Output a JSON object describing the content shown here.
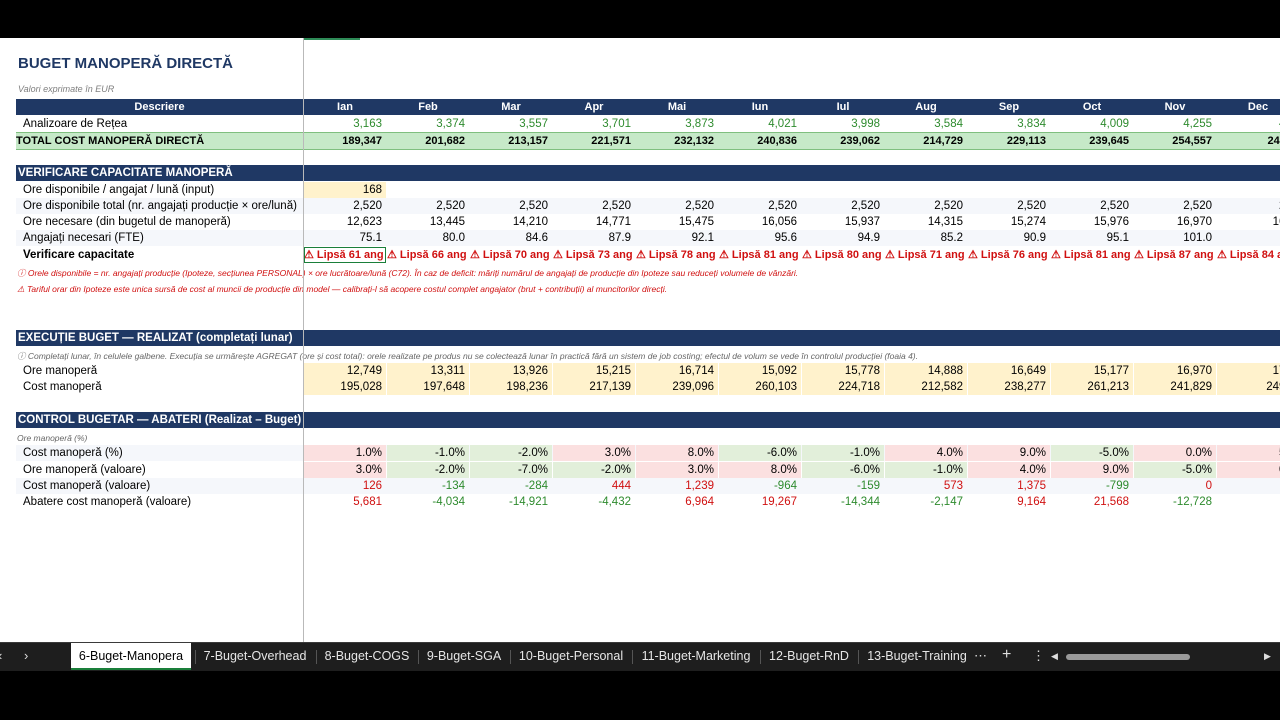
{
  "title": "BUGET MANOPERĂ DIRECTĂ",
  "subtitle": "Valori exprimate în EUR",
  "header": {
    "label": "Descriere",
    "months": [
      "Ian",
      "Feb",
      "Mar",
      "Apr",
      "Mai",
      "Iun",
      "Iul",
      "Aug",
      "Sep",
      "Oct",
      "Nov",
      "Dec"
    ]
  },
  "budget": {
    "analyzers": {
      "label": "Analizoare de Rețea",
      "values": [
        "3,163",
        "3,374",
        "3,557",
        "3,701",
        "3,873",
        "4,021",
        "3,998",
        "3,584",
        "3,834",
        "4,009",
        "4,255",
        "4,1"
      ]
    },
    "total": {
      "label": "TOTAL COST MANOPERĂ DIRECTĂ",
      "values": [
        "189,347",
        "201,682",
        "213,157",
        "221,571",
        "232,132",
        "240,836",
        "239,062",
        "214,729",
        "229,113",
        "239,645",
        "254,557",
        "249,0"
      ]
    }
  },
  "capacity": {
    "title": "VERIFICARE CAPACITATE MANOPERĂ",
    "hours_per_employee": {
      "label": "Ore disponibile / angajat / lună (input)",
      "value": "168"
    },
    "hours_total": {
      "label": "Ore disponibile total (nr. angajați producție × ore/lună)",
      "values": [
        "2,520",
        "2,520",
        "2,520",
        "2,520",
        "2,520",
        "2,520",
        "2,520",
        "2,520",
        "2,520",
        "2,520",
        "2,520",
        "2,5"
      ]
    },
    "hours_needed": {
      "label": "Ore necesare (din bugetul de manoperă)",
      "values": [
        "12,623",
        "13,445",
        "14,210",
        "14,771",
        "15,475",
        "16,056",
        "15,937",
        "14,315",
        "15,274",
        "15,976",
        "16,970",
        "16,6"
      ]
    },
    "fte": {
      "label": "Angajați necesari (FTE)",
      "values": [
        "75.1",
        "80.0",
        "84.6",
        "87.9",
        "92.1",
        "95.6",
        "94.9",
        "85.2",
        "90.9",
        "95.1",
        "101.0",
        "98"
      ]
    },
    "check": {
      "label": "Verificare capacitate",
      "values": [
        "⚠ Lipsă 61 ang",
        "⚠ Lipsă 66 ang",
        "⚠ Lipsă 70 ang",
        "⚠ Lipsă 73 ang",
        "⚠ Lipsă 78 ang",
        "⚠ Lipsă 81 ang",
        "⚠ Lipsă 80 ang",
        "⚠ Lipsă 71 ang",
        "⚠ Lipsă 76 ang",
        "⚠ Lipsă 81 ang",
        "⚠ Lipsă 87 ang",
        "⚠ Lipsă 84 a"
      ]
    },
    "note1": "ⓘ Orele disponibile = nr. angajați producție (Ipoteze, secțiunea PERSONAL) × ore lucrătoare/lună (C72). În caz de deficit: măriți numărul de angajați de producție din Ipoteze sau reduceți volumele de vânzări.",
    "note2": "⚠ Tariful orar din Ipoteze este unica sursă de cost al muncii de producție din model — calibrați-l să acopere costul complet angajator (brut + contribuții) al muncitorilor direcți."
  },
  "execution": {
    "title": "EXECUȚIE BUGET — REALIZAT (completați lunar)",
    "note": "ⓘ Completați lunar, în celulele galbene. Execuția se urmărește AGREGAT (ore și cost total): orele realizate pe produs nu se colectează lunar în practică fără un sistem de job costing; efectul de volum se vede în controlul producției (foaia 4).",
    "hours": {
      "label": "Ore manoperă",
      "values": [
        "12,749",
        "13,311",
        "13,926",
        "15,215",
        "16,714",
        "15,092",
        "15,778",
        "14,888",
        "16,649",
        "15,177",
        "16,970",
        "17,4"
      ]
    },
    "cost": {
      "label": "Cost manoperă",
      "values": [
        "195,028",
        "197,648",
        "198,236",
        "217,139",
        "239,096",
        "260,103",
        "224,718",
        "212,582",
        "238,277",
        "261,213",
        "241,829",
        "249,0"
      ]
    }
  },
  "control": {
    "title": "CONTROL BUGETAR — ABATERI (Realizat – Buget)",
    "sublabel": "Ore manoperă (%)",
    "cost_pct": {
      "label": "Cost manoperă (%)",
      "values": [
        "1.0%",
        "-1.0%",
        "-2.0%",
        "3.0%",
        "8.0%",
        "-6.0%",
        "-1.0%",
        "4.0%",
        "9.0%",
        "-5.0%",
        "0.0%",
        "5.0"
      ]
    },
    "hours_val": {
      "label": "Ore manoperă (valoare)",
      "values": [
        "3.0%",
        "-2.0%",
        "-7.0%",
        "-2.0%",
        "3.0%",
        "8.0%",
        "-6.0%",
        "-1.0%",
        "4.0%",
        "9.0%",
        "-5.0%",
        "0.0"
      ]
    },
    "cost_val": {
      "label": "Cost manoperă (valoare)",
      "values": [
        "126",
        "-134",
        "-284",
        "444",
        "1,239",
        "-964",
        "-159",
        "573",
        "1,375",
        "-799",
        "0",
        "8"
      ]
    },
    "deviation": {
      "label": "Abatere cost manoperă (valoare)",
      "values": [
        "5,681",
        "-4,034",
        "-14,921",
        "-4,432",
        "6,964",
        "19,267",
        "-14,344",
        "-2,147",
        "9,164",
        "21,568",
        "-12,728",
        ""
      ]
    }
  },
  "tabs": [
    "6-Buget-Manopera",
    "7-Buget-Overhead",
    "8-Buget-COGS",
    "9-Buget-SGA",
    "10-Buget-Personal",
    "11-Buget-Marketing",
    "12-Buget-RnD",
    "13-Buget-Training"
  ],
  "tabbar": {
    "prev": "‹",
    "next": "›",
    "more": "⋯",
    "add": "+",
    "options": "⋮",
    "scroll_left": "◀",
    "scroll_right": "▶"
  },
  "colors": {
    "header": "#1f3864",
    "total": "#c6e9c8",
    "input": "#fff2cc",
    "negative_bg": "#fbe0e0",
    "positive_bg": "#e2efda",
    "alert": "#d01010"
  }
}
